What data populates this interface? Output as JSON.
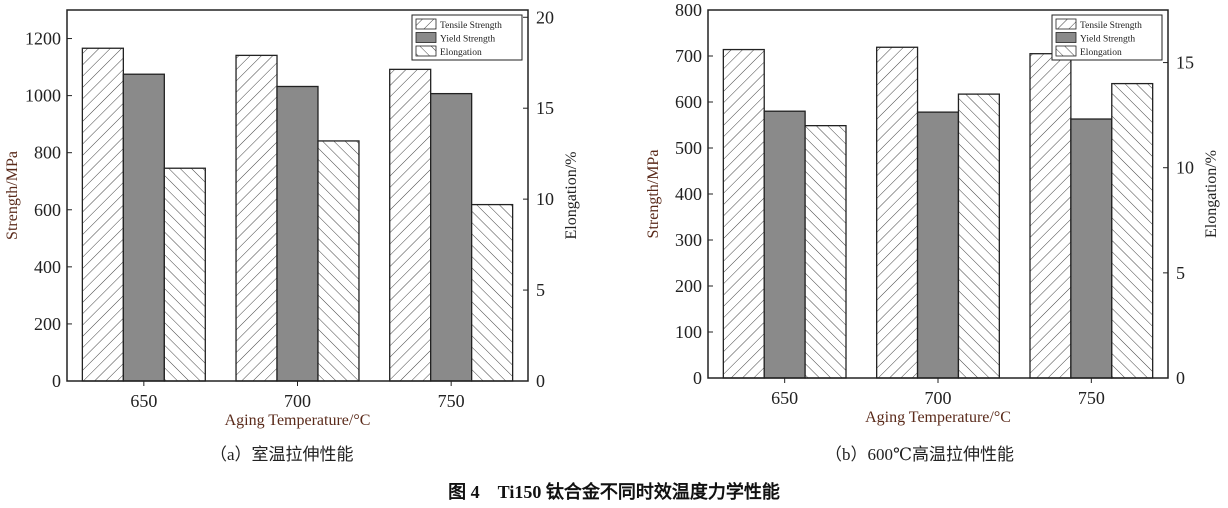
{
  "chart_data": [
    {
      "type": "bar",
      "caption": "（a）室温拉伸性能",
      "categories": [
        "650",
        "700",
        "750"
      ],
      "xlabel": "Aging Temperature/°C",
      "ylabel": "Strength/MPa",
      "ylabel_right": "Elongation/%",
      "ylim": [
        0,
        1300
      ],
      "yticks": [
        0,
        200,
        400,
        600,
        800,
        1000,
        1200
      ],
      "ylim_right": [
        0,
        20.4
      ],
      "yticks_right": [
        0,
        5,
        10,
        15,
        20
      ],
      "legend_position": "top-right",
      "series": [
        {
          "name": "Tensile Strength",
          "axis": "left",
          "pattern": "forward-hatch",
          "values": [
            1166,
            1141,
            1092
          ]
        },
        {
          "name": "Yield Strength",
          "axis": "left",
          "pattern": "solid-gray",
          "values": [
            1075,
            1032,
            1007
          ]
        },
        {
          "name": "Elongation",
          "axis": "right",
          "pattern": "back-hatch",
          "values": [
            11.7,
            13.2,
            9.7
          ]
        }
      ]
    },
    {
      "type": "bar",
      "caption": "（b）600℃高温拉伸性能",
      "categories": [
        "650",
        "700",
        "750"
      ],
      "xlabel": "Aging Temperature/°C",
      "ylabel": "Strength/MPa",
      "ylabel_right": "Elongation/%",
      "ylim": [
        0,
        800
      ],
      "yticks": [
        0,
        100,
        200,
        300,
        400,
        500,
        600,
        700,
        800
      ],
      "ylim_right": [
        0,
        17.5
      ],
      "yticks_right": [
        0,
        5,
        10,
        15
      ],
      "legend_position": "top-right",
      "series": [
        {
          "name": "Tensile Strength",
          "axis": "left",
          "pattern": "forward-hatch",
          "values": [
            714,
            719,
            705
          ]
        },
        {
          "name": "Yield Strength",
          "axis": "left",
          "pattern": "solid-gray",
          "values": [
            580,
            578,
            563
          ]
        },
        {
          "name": "Elongation",
          "axis": "right",
          "pattern": "back-hatch",
          "values": [
            12.0,
            13.5,
            14.0
          ]
        }
      ]
    }
  ],
  "figure_title": "图 4　Ti150 钛合金不同时效温度力学性能",
  "colors": {
    "yield_fill": "#8a8a8a",
    "axis": "#222222",
    "label": "#5a2a1a"
  }
}
